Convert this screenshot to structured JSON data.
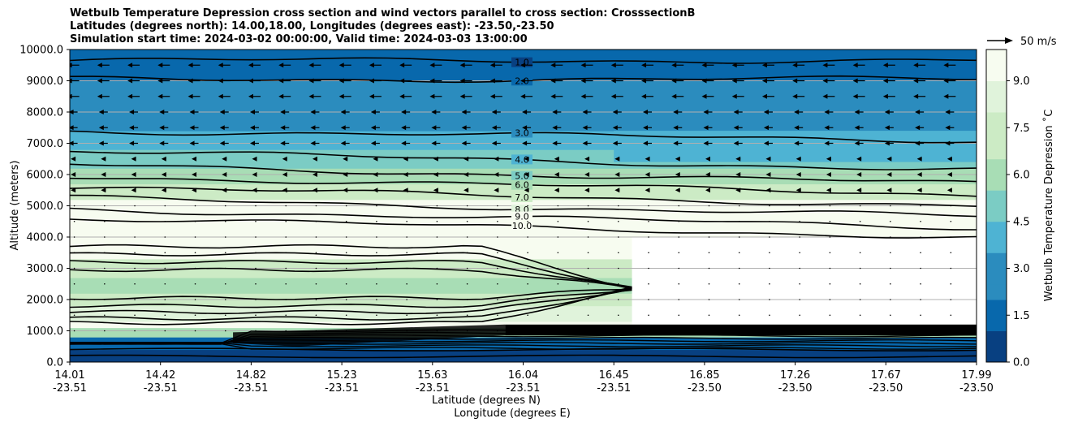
{
  "header": {
    "line1": "Wetbulb Temperature Depression cross section and wind vectors parallel to cross section: CrosssectionB",
    "line2": "Latitudes (degrees north): 14.00,18.00, Longitudes (degrees east): -23.50,-23.50",
    "line3": "Simulation start time: 2024-03-02 00:00:00, Valid time: 2024-03-03 13:00:00"
  },
  "chart_data": {
    "type": "heatmap",
    "xlabel": "Latitude (degrees N)",
    "xlabel2": "Longitude (degrees E)",
    "ylabel": "Altitude (meters)",
    "colorbar_label": "Wetbulb Temperature Depression $^\\circ$C",
    "colorbar_label_display": "Wetbulb Temperature Depression ˚C",
    "quiver_key": "50 m/s",
    "ylim": [
      0,
      10000
    ],
    "yticks": [
      "0.0",
      "1000.0",
      "2000.0",
      "3000.0",
      "4000.0",
      "5000.0",
      "6000.0",
      "7000.0",
      "8000.0",
      "9000.0",
      "10000.0"
    ],
    "xticks": [
      {
        "lat": "14.01",
        "lon": "-23.51"
      },
      {
        "lat": "14.42",
        "lon": "-23.51"
      },
      {
        "lat": "14.82",
        "lon": "-23.51"
      },
      {
        "lat": "15.23",
        "lon": "-23.51"
      },
      {
        "lat": "15.63",
        "lon": "-23.51"
      },
      {
        "lat": "16.04",
        "lon": "-23.51"
      },
      {
        "lat": "16.45",
        "lon": "-23.51"
      },
      {
        "lat": "16.85",
        "lon": "-23.50"
      },
      {
        "lat": "17.26",
        "lon": "-23.50"
      },
      {
        "lat": "17.67",
        "lon": "-23.50"
      },
      {
        "lat": "17.99",
        "lon": "-23.50"
      }
    ],
    "colorbar_range": [
      0,
      10
    ],
    "colorbar_ticks": [
      "0.0",
      "1.5",
      "3.0",
      "4.5",
      "6.0",
      "7.5",
      "9.0"
    ],
    "colorscale": [
      "#084081",
      "#0868ac",
      "#2b8cbe",
      "#4eb3d3",
      "#7bccc4",
      "#a8ddb5",
      "#ccebc5",
      "#e0f3db",
      "#f7fcf0"
    ],
    "grid": "horizontal",
    "contour_levels_labeled": [
      "1.0",
      "2.0",
      "3.0",
      "4.0",
      "5.0",
      "6.0",
      "7.0",
      "8.0",
      "9.0",
      "10.0"
    ],
    "upper_contours_at_left_altitude": [
      {
        "level": 1.0,
        "alt": 9650
      },
      {
        "level": 2.0,
        "alt": 9050
      },
      {
        "level": 3.0,
        "alt": 7400
      },
      {
        "level": 4.0,
        "alt": 6750
      },
      {
        "level": 5.0,
        "alt": 6300
      },
      {
        "level": 6.0,
        "alt": 5950
      },
      {
        "level": 7.0,
        "alt": 5600
      },
      {
        "level": 8.0,
        "alt": 5250
      },
      {
        "level": 9.0,
        "alt": 4900
      },
      {
        "level": 10.0,
        "alt": 4600
      }
    ]
  }
}
